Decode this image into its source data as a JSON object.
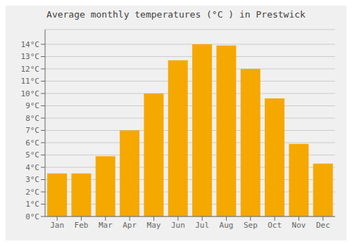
{
  "chart_data": {
    "type": "bar",
    "title": "Average monthly temperatures (°C ) in Prestwick",
    "categories": [
      "Jan",
      "Feb",
      "Mar",
      "Apr",
      "May",
      "Jun",
      "Jul",
      "Aug",
      "Sep",
      "Oct",
      "Nov",
      "Dec"
    ],
    "values": [
      3.5,
      3.5,
      4.9,
      7.0,
      10.0,
      12.7,
      14.0,
      13.9,
      12.0,
      9.6,
      5.9,
      4.3
    ],
    "color": "#F5A800",
    "ylim": [
      0,
      15.2
    ],
    "yticks": [
      {
        "value": 0,
        "label": "0°C"
      },
      {
        "value": 1,
        "label": "1°C"
      },
      {
        "value": 2,
        "label": "2°C"
      },
      {
        "value": 3,
        "label": "3°C"
      },
      {
        "value": 4,
        "label": "4°C"
      },
      {
        "value": 5,
        "label": "5°C"
      },
      {
        "value": 6,
        "label": "6°C"
      },
      {
        "value": 7,
        "label": "7°C"
      },
      {
        "value": 8,
        "label": "8°C"
      },
      {
        "value": 9,
        "label": "9°C"
      },
      {
        "value": 10,
        "label": "10°C"
      },
      {
        "value": 11,
        "label": "11°C"
      },
      {
        "value": 12,
        "label": "12°C"
      },
      {
        "value": 13,
        "label": "13°C"
      },
      {
        "value": 14,
        "label": "14°C"
      }
    ],
    "grid": true
  }
}
